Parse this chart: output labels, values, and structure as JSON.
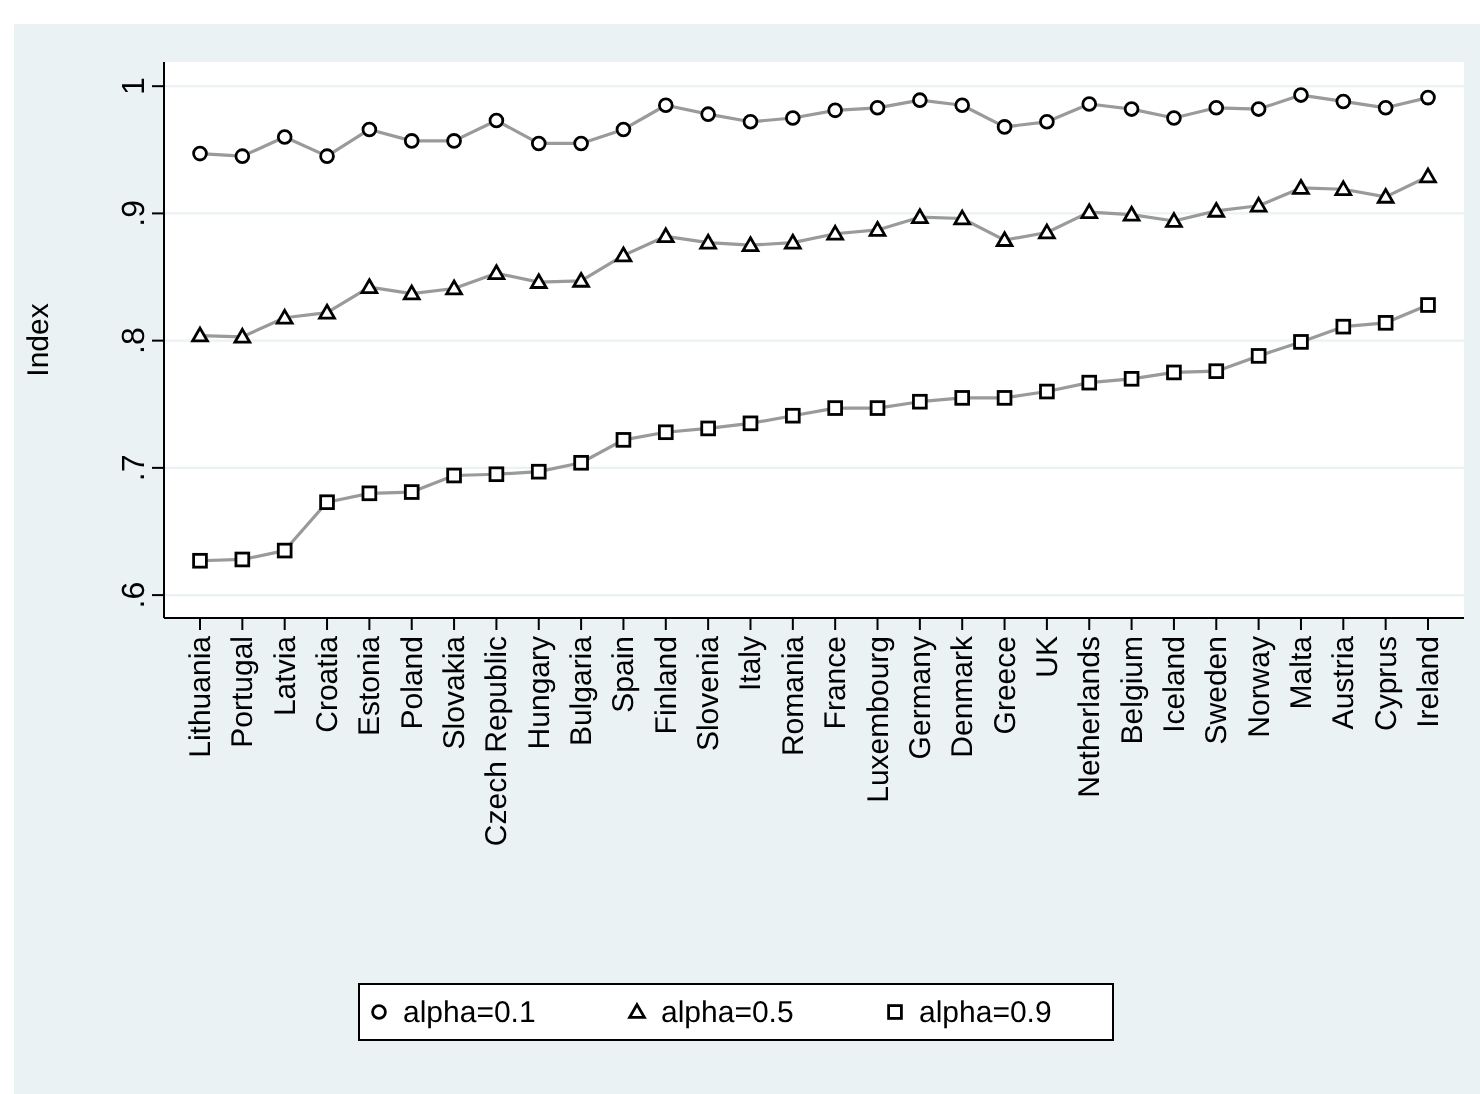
{
  "chart_data": {
    "type": "line",
    "ylabel": "Index",
    "categories": [
      "Lithuania",
      "Portugal",
      "Latvia",
      "Croatia",
      "Estonia",
      "Poland",
      "Slovakia",
      "Czech Republic",
      "Hungary",
      "Bulgaria",
      "Spain",
      "Finland",
      "Slovenia",
      "Italy",
      "Romania",
      "France",
      "Luxembourg",
      "Germany",
      "Denmark",
      "Greece",
      "UK",
      "Netherlands",
      "Belgium",
      "Iceland",
      "Sweden",
      "Norway",
      "Malta",
      "Austria",
      "Cyprus",
      "Ireland"
    ],
    "series": [
      {
        "name": "alpha=0.1",
        "color": "#000000",
        "marker": "circle",
        "values": [
          0.947,
          0.945,
          0.96,
          0.945,
          0.966,
          0.957,
          0.957,
          0.973,
          0.955,
          0.955,
          0.966,
          0.985,
          0.978,
          0.972,
          0.975,
          0.981,
          0.983,
          0.989,
          0.985,
          0.968,
          0.972,
          0.986,
          0.982,
          0.975,
          0.983,
          0.982,
          0.993,
          0.988,
          0.983,
          0.991
        ]
      },
      {
        "name": "alpha=0.5",
        "color": "#000000",
        "marker": "triangle",
        "values": [
          0.804,
          0.803,
          0.818,
          0.822,
          0.842,
          0.837,
          0.841,
          0.853,
          0.846,
          0.847,
          0.867,
          0.882,
          0.877,
          0.875,
          0.877,
          0.884,
          0.887,
          0.897,
          0.896,
          0.879,
          0.885,
          0.901,
          0.899,
          0.894,
          0.902,
          0.906,
          0.92,
          0.919,
          0.913,
          0.929
        ]
      },
      {
        "name": "alpha=0.9",
        "color": "#000000",
        "marker": "square",
        "values": [
          0.627,
          0.628,
          0.635,
          0.673,
          0.68,
          0.681,
          0.694,
          0.695,
          0.697,
          0.704,
          0.722,
          0.728,
          0.731,
          0.735,
          0.741,
          0.747,
          0.747,
          0.752,
          0.755,
          0.755,
          0.76,
          0.767,
          0.77,
          0.775,
          0.776,
          0.788,
          0.799,
          0.811,
          0.814,
          0.828
        ]
      }
    ],
    "ylim": [
      0.582,
      1.019
    ],
    "yticks": [
      {
        "value": 0.6,
        "label": ".6"
      },
      {
        "value": 0.7,
        "label": ".7"
      },
      {
        "value": 0.8,
        "label": ".8"
      },
      {
        "value": 0.9,
        "label": ".9"
      },
      1
    ],
    "grid": "y",
    "legend": "bottom",
    "line_style": "solid"
  }
}
